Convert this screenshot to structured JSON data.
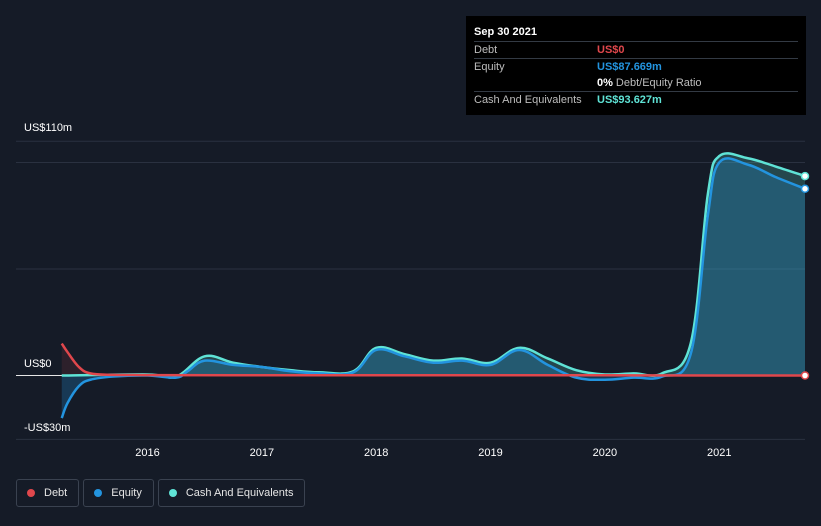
{
  "chart_data": {
    "type": "area",
    "title": "",
    "xlabel": "",
    "ylabel": "",
    "y_axis_labels": {
      "top": "US$110m",
      "zero": "US$0",
      "bottom": "-US$30m"
    },
    "ylim": [
      -30,
      110
    ],
    "x_ticks": [
      {
        "label": "2016",
        "x": 2016
      },
      {
        "label": "2017",
        "x": 2017
      },
      {
        "label": "2018",
        "x": 2018
      },
      {
        "label": "2019",
        "x": 2019
      },
      {
        "label": "2020",
        "x": 2020
      },
      {
        "label": "2021",
        "x": 2021
      }
    ],
    "xlim": [
      2014.85,
      2021.75
    ],
    "gridlines": [
      110,
      100,
      50,
      0
    ],
    "series": [
      {
        "name": "Debt",
        "color": "#e0474c",
        "points": [
          [
            2015.25,
            15
          ],
          [
            2015.3,
            11
          ],
          [
            2015.4,
            4
          ],
          [
            2015.5,
            1
          ],
          [
            2015.7,
            0.3
          ],
          [
            2016,
            0.2
          ],
          [
            2017,
            0.1
          ],
          [
            2018,
            0.1
          ],
          [
            2019,
            0.1
          ],
          [
            2020,
            0.1
          ],
          [
            2021,
            0
          ],
          [
            2021.75,
            0
          ]
        ]
      },
      {
        "name": "Equity",
        "color": "#2394df",
        "points": [
          [
            2015.25,
            -20
          ],
          [
            2015.3,
            -13
          ],
          [
            2015.4,
            -5
          ],
          [
            2015.5,
            -2
          ],
          [
            2015.7,
            -0.5
          ],
          [
            2016,
            0
          ],
          [
            2016.25,
            -1
          ],
          [
            2016.35,
            2
          ],
          [
            2016.5,
            7
          ],
          [
            2016.75,
            5
          ],
          [
            2017,
            4
          ],
          [
            2017.25,
            2
          ],
          [
            2017.5,
            1
          ],
          [
            2017.8,
            1.5
          ],
          [
            2018,
            12
          ],
          [
            2018.25,
            9
          ],
          [
            2018.5,
            6
          ],
          [
            2018.75,
            7
          ],
          [
            2019,
            5
          ],
          [
            2019.25,
            12
          ],
          [
            2019.5,
            5
          ],
          [
            2019.75,
            -1
          ],
          [
            2020,
            -2
          ],
          [
            2020.25,
            -1
          ],
          [
            2020.5,
            -0.5
          ],
          [
            2020.75,
            10
          ],
          [
            2020.9,
            75
          ],
          [
            2021,
            100
          ],
          [
            2021.25,
            99
          ],
          [
            2021.5,
            93
          ],
          [
            2021.75,
            87.669
          ]
        ]
      },
      {
        "name": "Cash And Equivalents",
        "color": "#5fe3d6",
        "points": [
          [
            2015.25,
            0
          ],
          [
            2016,
            0.5
          ],
          [
            2016.25,
            -0.5
          ],
          [
            2016.5,
            9
          ],
          [
            2016.75,
            6
          ],
          [
            2017,
            4
          ],
          [
            2017.25,
            2.5
          ],
          [
            2017.5,
            1.5
          ],
          [
            2017.8,
            2
          ],
          [
            2018,
            13
          ],
          [
            2018.25,
            10
          ],
          [
            2018.5,
            7
          ],
          [
            2018.75,
            8
          ],
          [
            2019,
            6
          ],
          [
            2019.25,
            13
          ],
          [
            2019.5,
            8
          ],
          [
            2019.75,
            2.5
          ],
          [
            2020,
            0.5
          ],
          [
            2020.25,
            1
          ],
          [
            2020.5,
            1
          ],
          [
            2020.75,
            15
          ],
          [
            2020.9,
            85
          ],
          [
            2021,
            103
          ],
          [
            2021.25,
            102
          ],
          [
            2021.5,
            98
          ],
          [
            2021.75,
            93.627
          ]
        ]
      }
    ]
  },
  "tooltip": {
    "date": "Sep 30 2021",
    "rows": [
      {
        "label": "Debt",
        "value": "US$0",
        "color": "#e0474c"
      },
      {
        "label": "Equity",
        "value": "US$87.669m",
        "color": "#2394df"
      }
    ],
    "ratio_value": "0%",
    "ratio_label": "Debt/Equity Ratio",
    "cash_label": "Cash And Equivalents",
    "cash_value": "US$93.627m",
    "cash_color": "#5fe3d6"
  },
  "legend": [
    {
      "label": "Debt",
      "color": "#e0474c"
    },
    {
      "label": "Equity",
      "color": "#2394df"
    },
    {
      "label": "Cash And Equivalents",
      "color": "#5fe3d6"
    }
  ]
}
